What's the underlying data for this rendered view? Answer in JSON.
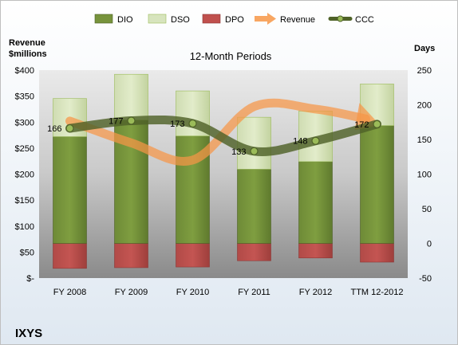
{
  "chart_data": {
    "type": "bar",
    "title": "12-Month Periods",
    "company": "IXYS",
    "categories": [
      "FY 2008",
      "FY 2009",
      "FY 2010",
      "FY 2011",
      "FY 2012",
      "TTM 12-2012"
    ],
    "left_axis": {
      "title_line1": "Revenue",
      "title_line2": "$millions",
      "ylim": [
        0,
        400
      ],
      "tick_values": [
        0,
        50,
        100,
        150,
        200,
        250,
        300,
        350,
        400
      ],
      "tick_labels": [
        "$-",
        "$50",
        "$100",
        "$150",
        "$200",
        "$250",
        "$300",
        "$350",
        "$400"
      ]
    },
    "right_axis": {
      "title": "Days",
      "ylim": [
        -50,
        250
      ],
      "tick_values": [
        -50,
        0,
        50,
        100,
        150,
        200,
        250
      ],
      "tick_labels": [
        "-50",
        "0",
        "50",
        "100",
        "150",
        "200",
        "250"
      ]
    },
    "series": [
      {
        "name": "DIO",
        "kind": "stacked-bar",
        "axis": "right",
        "color": "#77933c",
        "values": [
          154,
          178,
          155,
          107,
          118,
          170
        ]
      },
      {
        "name": "DSO",
        "kind": "stacked-bar",
        "axis": "right",
        "color": "#d7e4bd",
        "values": [
          55,
          66,
          65,
          75,
          73,
          60
        ]
      },
      {
        "name": "DPO",
        "kind": "stacked-bar",
        "axis": "right",
        "color": "#c0504d",
        "values": [
          -36,
          -35,
          -34,
          -25,
          -21,
          -27
        ]
      },
      {
        "name": "Revenue",
        "kind": "line",
        "axis": "left",
        "color": "#f79646",
        "values": [
          302,
          260,
          227,
          330,
          325,
          297
        ]
      },
      {
        "name": "CCC",
        "kind": "line",
        "axis": "right",
        "color": "#4f6228",
        "values": [
          166,
          177,
          173,
          133,
          148,
          172
        ]
      }
    ],
    "ccc_labels": [
      "166",
      "177",
      "173",
      "133",
      "148",
      "172"
    ],
    "legend_position": "top",
    "grid": false
  }
}
